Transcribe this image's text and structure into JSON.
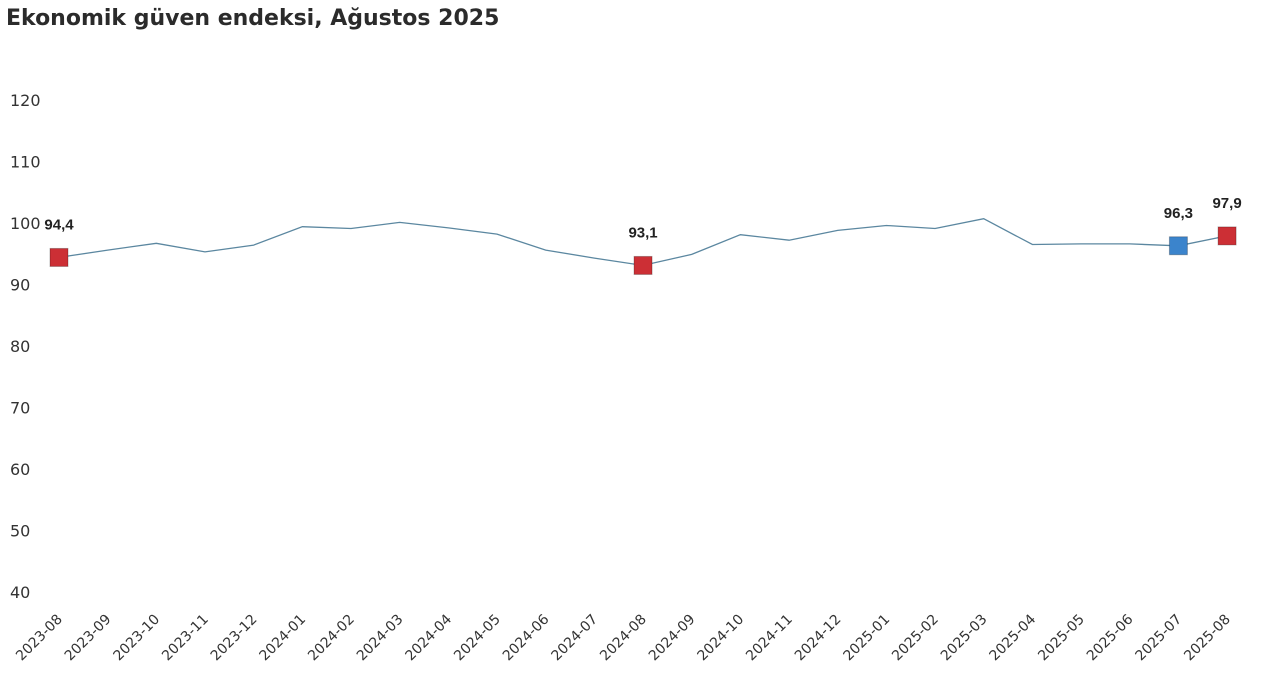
{
  "chart_data": {
    "type": "line",
    "title": "Ekonomik güven endeksi, Ağustos 2025",
    "xlabel": "",
    "ylabel": "",
    "ylim": [
      40,
      120
    ],
    "yticks": [
      "40",
      "50",
      "60",
      "70",
      "80",
      "90",
      "100",
      "110",
      "120"
    ],
    "grid": false,
    "legend": "none",
    "x": [
      "2023-08",
      "2023-09",
      "2023-10",
      "2023-11",
      "2023-12",
      "2024-01",
      "2024-02",
      "2024-03",
      "2024-04",
      "2024-05",
      "2024-06",
      "2024-07",
      "2024-08",
      "2024-09",
      "2024-10",
      "2024-11",
      "2024-12",
      "2025-01",
      "2025-02",
      "2025-03",
      "2025-04",
      "2025-05",
      "2025-06",
      "2025-07",
      "2025-08"
    ],
    "series": [
      {
        "color": "#5b87a0",
        "values": [
          94.4,
          95.6,
          96.7,
          95.3,
          96.4,
          99.4,
          99.1,
          100.1,
          99.2,
          98.2,
          95.6,
          94.3,
          93.1,
          94.9,
          98.1,
          97.2,
          98.8,
          99.6,
          99.1,
          100.7,
          96.5,
          96.6,
          96.6,
          96.3,
          97.9
        ]
      }
    ],
    "highlights": [
      {
        "index": 0,
        "label": "94,4",
        "color": "#cc2f35"
      },
      {
        "index": 12,
        "label": "93,1",
        "color": "#cc2f35"
      },
      {
        "index": 23,
        "label": "96,3",
        "color": "#3b84cc"
      },
      {
        "index": 24,
        "label": "97,9",
        "color": "#cc2f35"
      }
    ]
  }
}
